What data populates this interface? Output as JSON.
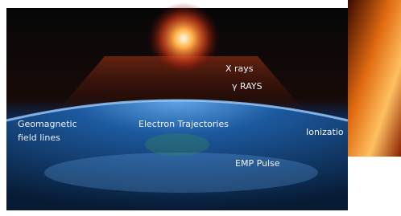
{
  "labels": {
    "x_rays": "X rays",
    "gamma_rays": "γ RAYS",
    "geomagnetic": [
      "Geomagnetic",
      "field lines"
    ],
    "electron_trajectories": "Electron Trajectories",
    "ionization": "Ionizatio",
    "emp_pulse": "EMP Pulse"
  }
}
